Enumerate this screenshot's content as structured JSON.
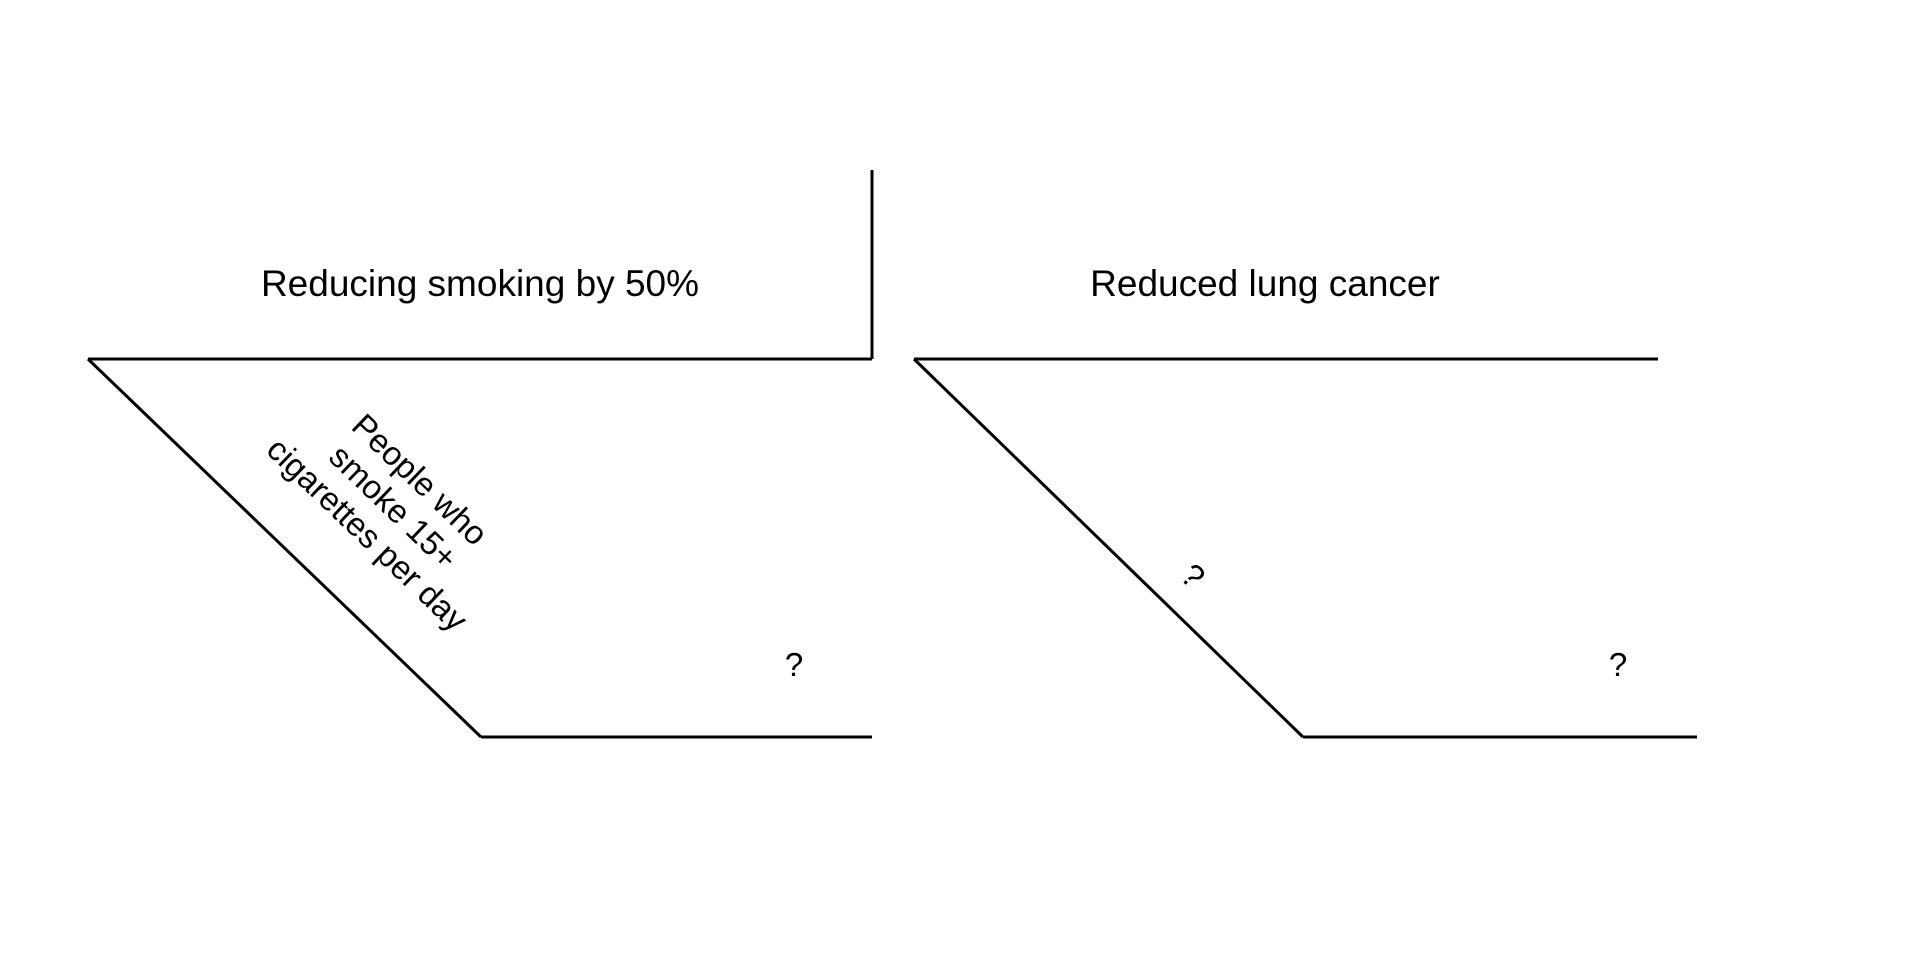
{
  "diagram": {
    "left_top_label": "Reducing smoking by 50%",
    "right_top_label": "Reduced lung cancer",
    "left_slant_label": {
      "line1": "People who",
      "line2": "smoke 15+",
      "line3": "cigarettes per day"
    },
    "left_bottom_label": "?",
    "right_slant_label": "?",
    "right_bottom_label": "?"
  }
}
